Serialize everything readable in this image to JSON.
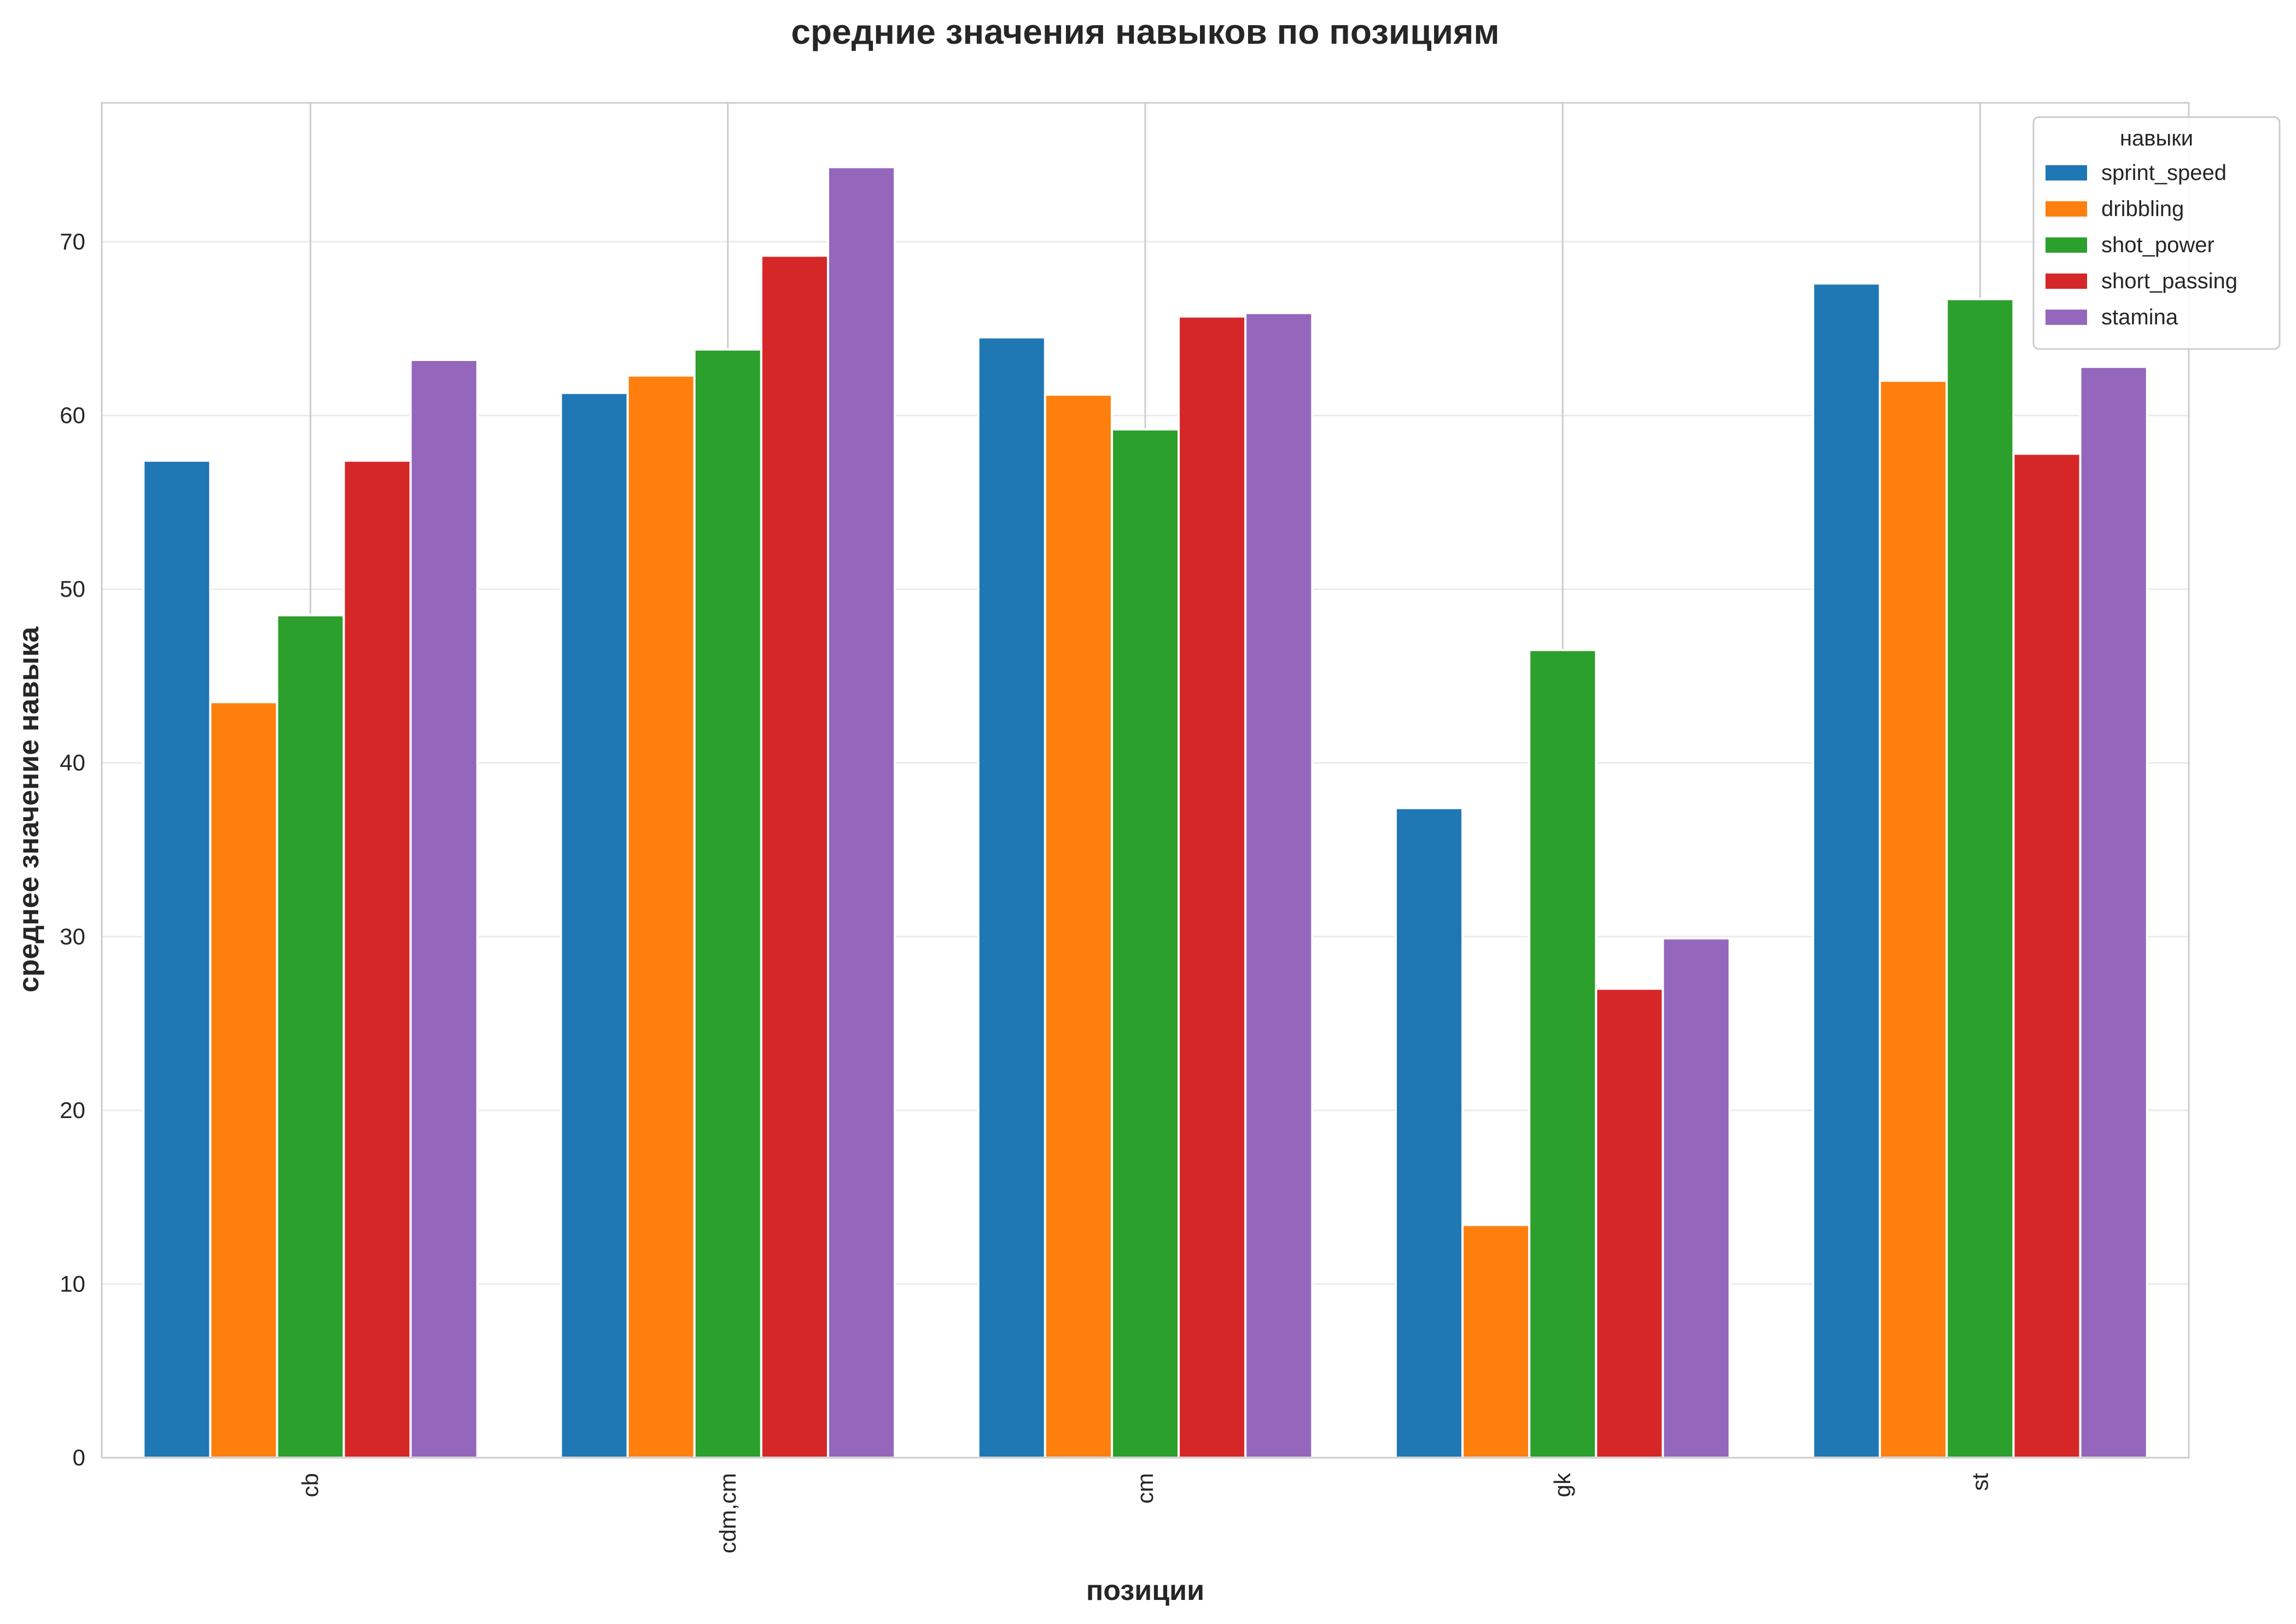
{
  "chart_data": {
    "type": "bar",
    "title": "средние значения навыков по позициям",
    "xlabel": "позиции",
    "ylabel": "среднее значение навыка",
    "categories": [
      "cb",
      "cdm,cm",
      "cm",
      "gk",
      "st"
    ],
    "series": [
      {
        "name": "sprint_speed",
        "color": "#1f77b4",
        "values": [
          57.4,
          61.3,
          64.5,
          37.4,
          67.6
        ]
      },
      {
        "name": "dribbling",
        "color": "#ff7f0e",
        "values": [
          43.5,
          62.3,
          61.2,
          13.4,
          62.0
        ]
      },
      {
        "name": "shot_power",
        "color": "#2ca02c",
        "values": [
          48.5,
          63.8,
          59.2,
          46.5,
          66.7
        ]
      },
      {
        "name": "short_passing",
        "color": "#d62728",
        "values": [
          57.4,
          69.2,
          65.7,
          27.0,
          57.8
        ]
      },
      {
        "name": "stamina",
        "color": "#9467bd",
        "values": [
          63.2,
          74.3,
          65.9,
          29.9,
          62.8
        ]
      }
    ],
    "yticks": [
      0,
      10,
      20,
      30,
      40,
      50,
      60,
      70
    ],
    "ylim": [
      0,
      78
    ],
    "legend": {
      "title": "навыки",
      "placement": "top-right"
    },
    "grid": true,
    "xtick_rotation": "vertical"
  }
}
